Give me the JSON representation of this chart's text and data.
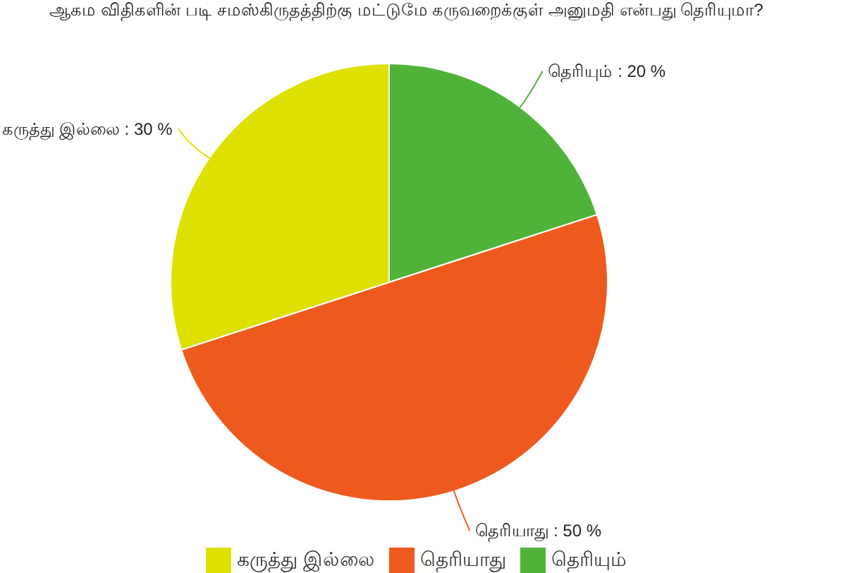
{
  "chart_data": {
    "type": "pie",
    "title": "ஆகம விதிகளின் படி சமஸ்கிருதத்திற்கு மட்டுமே கருவறைக்குள் அனுமதி என்பது தெரியுமா?",
    "categories": [
      "தெரியும்",
      "தெரியாது",
      "கருத்து இல்லை"
    ],
    "values": [
      20,
      50,
      30
    ],
    "colors": [
      "#4fb33a",
      "#ee5a1e",
      "#dde000"
    ],
    "value_labels": [
      "தெரியும் : 20 %",
      "தெரியாது : 50 %",
      "கருத்து இல்லை : 30 %"
    ],
    "legend": "bottom"
  }
}
